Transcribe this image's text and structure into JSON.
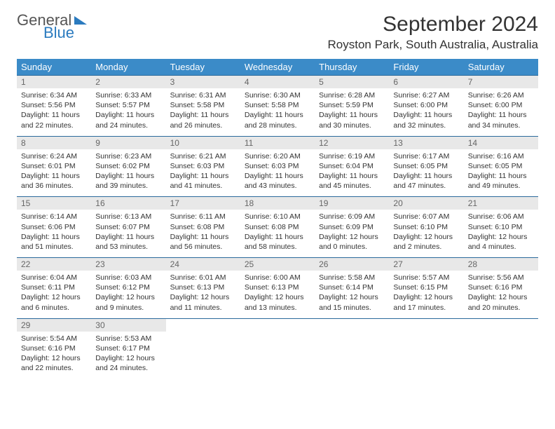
{
  "brand": {
    "line1": "General",
    "line2": "Blue",
    "accent_color": "#2b7bbf"
  },
  "title": "September 2024",
  "location": "Royston Park, South Australia, Australia",
  "colors": {
    "header_bg": "#3b8bc8",
    "header_fg": "#ffffff",
    "daynum_bg": "#e8e8e8",
    "daynum_fg": "#666666",
    "row_divider": "#2b6a9c",
    "text": "#333333"
  },
  "typography": {
    "title_fontsize": 30,
    "location_fontsize": 17,
    "dow_fontsize": 13,
    "daynum_fontsize": 12,
    "cell_fontsize": 10.5
  },
  "dow": [
    "Sunday",
    "Monday",
    "Tuesday",
    "Wednesday",
    "Thursday",
    "Friday",
    "Saturday"
  ],
  "weeks": [
    [
      {
        "n": "1",
        "sr": "6:34 AM",
        "ss": "5:56 PM",
        "dl": "11 hours and 22 minutes."
      },
      {
        "n": "2",
        "sr": "6:33 AM",
        "ss": "5:57 PM",
        "dl": "11 hours and 24 minutes."
      },
      {
        "n": "3",
        "sr": "6:31 AM",
        "ss": "5:58 PM",
        "dl": "11 hours and 26 minutes."
      },
      {
        "n": "4",
        "sr": "6:30 AM",
        "ss": "5:58 PM",
        "dl": "11 hours and 28 minutes."
      },
      {
        "n": "5",
        "sr": "6:28 AM",
        "ss": "5:59 PM",
        "dl": "11 hours and 30 minutes."
      },
      {
        "n": "6",
        "sr": "6:27 AM",
        "ss": "6:00 PM",
        "dl": "11 hours and 32 minutes."
      },
      {
        "n": "7",
        "sr": "6:26 AM",
        "ss": "6:00 PM",
        "dl": "11 hours and 34 minutes."
      }
    ],
    [
      {
        "n": "8",
        "sr": "6:24 AM",
        "ss": "6:01 PM",
        "dl": "11 hours and 36 minutes."
      },
      {
        "n": "9",
        "sr": "6:23 AM",
        "ss": "6:02 PM",
        "dl": "11 hours and 39 minutes."
      },
      {
        "n": "10",
        "sr": "6:21 AM",
        "ss": "6:03 PM",
        "dl": "11 hours and 41 minutes."
      },
      {
        "n": "11",
        "sr": "6:20 AM",
        "ss": "6:03 PM",
        "dl": "11 hours and 43 minutes."
      },
      {
        "n": "12",
        "sr": "6:19 AM",
        "ss": "6:04 PM",
        "dl": "11 hours and 45 minutes."
      },
      {
        "n": "13",
        "sr": "6:17 AM",
        "ss": "6:05 PM",
        "dl": "11 hours and 47 minutes."
      },
      {
        "n": "14",
        "sr": "6:16 AM",
        "ss": "6:05 PM",
        "dl": "11 hours and 49 minutes."
      }
    ],
    [
      {
        "n": "15",
        "sr": "6:14 AM",
        "ss": "6:06 PM",
        "dl": "11 hours and 51 minutes."
      },
      {
        "n": "16",
        "sr": "6:13 AM",
        "ss": "6:07 PM",
        "dl": "11 hours and 53 minutes."
      },
      {
        "n": "17",
        "sr": "6:11 AM",
        "ss": "6:08 PM",
        "dl": "11 hours and 56 minutes."
      },
      {
        "n": "18",
        "sr": "6:10 AM",
        "ss": "6:08 PM",
        "dl": "11 hours and 58 minutes."
      },
      {
        "n": "19",
        "sr": "6:09 AM",
        "ss": "6:09 PM",
        "dl": "12 hours and 0 minutes."
      },
      {
        "n": "20",
        "sr": "6:07 AM",
        "ss": "6:10 PM",
        "dl": "12 hours and 2 minutes."
      },
      {
        "n": "21",
        "sr": "6:06 AM",
        "ss": "6:10 PM",
        "dl": "12 hours and 4 minutes."
      }
    ],
    [
      {
        "n": "22",
        "sr": "6:04 AM",
        "ss": "6:11 PM",
        "dl": "12 hours and 6 minutes."
      },
      {
        "n": "23",
        "sr": "6:03 AM",
        "ss": "6:12 PM",
        "dl": "12 hours and 9 minutes."
      },
      {
        "n": "24",
        "sr": "6:01 AM",
        "ss": "6:13 PM",
        "dl": "12 hours and 11 minutes."
      },
      {
        "n": "25",
        "sr": "6:00 AM",
        "ss": "6:13 PM",
        "dl": "12 hours and 13 minutes."
      },
      {
        "n": "26",
        "sr": "5:58 AM",
        "ss": "6:14 PM",
        "dl": "12 hours and 15 minutes."
      },
      {
        "n": "27",
        "sr": "5:57 AM",
        "ss": "6:15 PM",
        "dl": "12 hours and 17 minutes."
      },
      {
        "n": "28",
        "sr": "5:56 AM",
        "ss": "6:16 PM",
        "dl": "12 hours and 20 minutes."
      }
    ],
    [
      {
        "n": "29",
        "sr": "5:54 AM",
        "ss": "6:16 PM",
        "dl": "12 hours and 22 minutes."
      },
      {
        "n": "30",
        "sr": "5:53 AM",
        "ss": "6:17 PM",
        "dl": "12 hours and 24 minutes."
      },
      null,
      null,
      null,
      null,
      null
    ]
  ],
  "labels": {
    "sunrise": "Sunrise:",
    "sunset": "Sunset:",
    "daylight": "Daylight:"
  }
}
